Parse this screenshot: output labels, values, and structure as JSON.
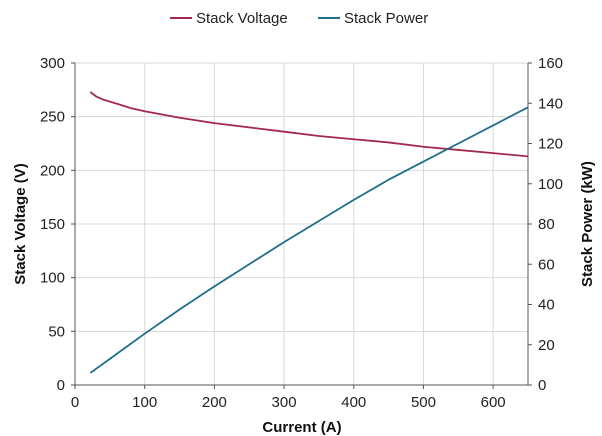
{
  "chart_data": {
    "type": "line",
    "xlabel": "Current (A)",
    "ylabel": "Stack Voltage (V)",
    "y2label": "Stack Power (kW)",
    "xlim": [
      0,
      650
    ],
    "ylim": [
      0,
      300
    ],
    "y2lim": [
      0,
      160
    ],
    "x_ticks": [
      "0",
      "100",
      "200",
      "300",
      "400",
      "500",
      "600"
    ],
    "y_ticks": [
      "0",
      "50",
      "100",
      "150",
      "200",
      "250",
      "300"
    ],
    "y2_ticks": [
      "0",
      "20",
      "40",
      "60",
      "80",
      "100",
      "120",
      "140",
      "160"
    ],
    "grid": true,
    "legend_position": "top",
    "series": [
      {
        "name": "Stack Voltage",
        "axis": "left",
        "color": "#a3284e",
        "x": [
          22,
          30,
          40,
          60,
          80,
          100,
          150,
          200,
          250,
          300,
          350,
          400,
          450,
          500,
          550,
          600,
          650
        ],
        "y": [
          273,
          269,
          266,
          262,
          258,
          255,
          249,
          244,
          240,
          236,
          232,
          229,
          226,
          222,
          219,
          216,
          213
        ]
      },
      {
        "name": "Stack Power",
        "axis": "right",
        "color": "#1f6e8c",
        "x": [
          22,
          50,
          100,
          150,
          200,
          250,
          300,
          350,
          400,
          450,
          500,
          550,
          600,
          650
        ],
        "y": [
          6,
          13,
          25.5,
          37.5,
          49,
          60,
          71,
          81.5,
          92,
          102,
          111,
          120,
          129,
          138
        ]
      }
    ]
  }
}
